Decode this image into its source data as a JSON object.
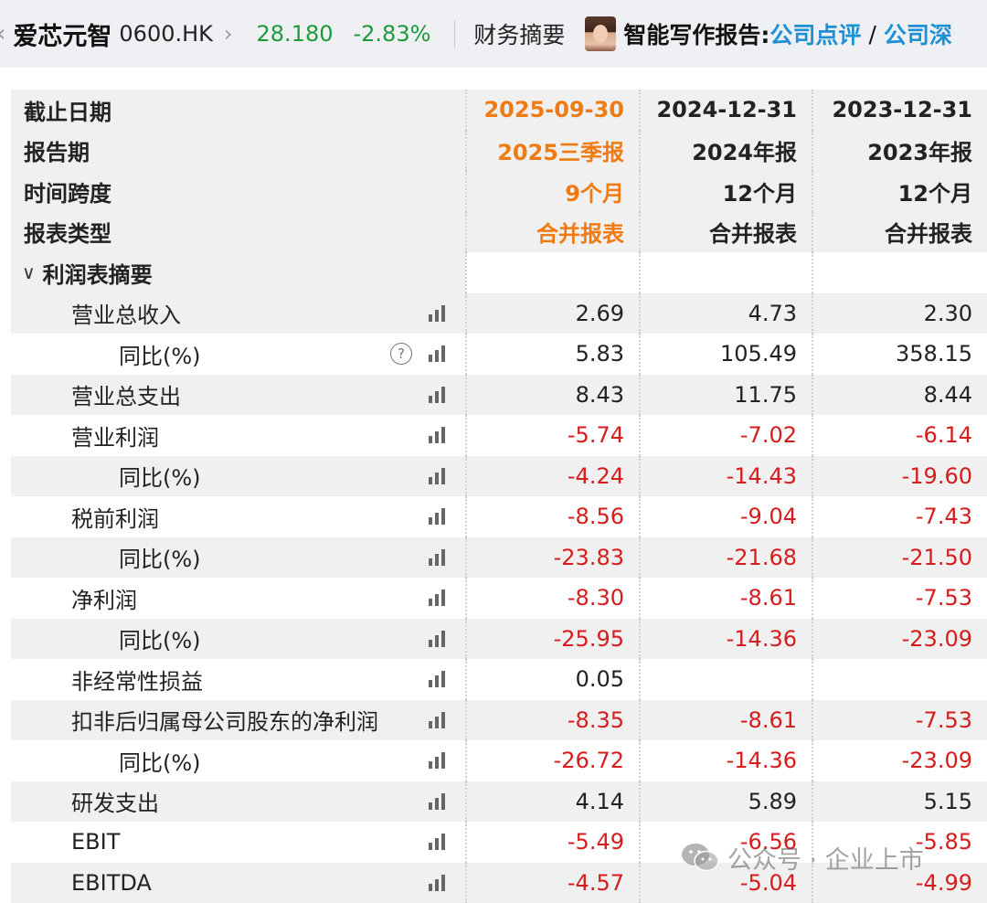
{
  "header": {
    "back_glyph": "‹",
    "stock_name": "爱芯元智",
    "stock_code": "0600.HK",
    "chevron_glyph": "›",
    "price": "28.180",
    "change_pct": "-2.83%",
    "price_color": "#1e9a3b",
    "section_title": "财务摘要",
    "ai_label": "智能写作报告:",
    "link_review": "公司点评",
    "slash": "/",
    "link_deep": "公司深"
  },
  "table": {
    "header_rows": [
      {
        "label": "截止日期",
        "values": [
          "2025-09-30",
          "2024-12-31",
          "2023-12-31"
        ]
      },
      {
        "label": "报告期",
        "values": [
          "2025三季报",
          "2024年报",
          "2023年报"
        ]
      },
      {
        "label": "时间跨度",
        "values": [
          "9个月",
          "12个月",
          "12个月"
        ]
      },
      {
        "label": "报表类型",
        "values": [
          "合并报表",
          "合并报表",
          "合并报表"
        ]
      }
    ],
    "section": {
      "caret": "∨",
      "label": "利润表摘要"
    },
    "rows": [
      {
        "label": "营业总收入",
        "values": [
          "2.69",
          "4.73",
          "2.30"
        ]
      },
      {
        "label": "同比(%)",
        "values": [
          "5.83",
          "105.49",
          "358.15"
        ]
      },
      {
        "label": "营业总支出",
        "values": [
          "8.43",
          "11.75",
          "8.44"
        ]
      },
      {
        "label": "营业利润",
        "values": [
          "-5.74",
          "-7.02",
          "-6.14"
        ]
      },
      {
        "label": "同比(%)",
        "values": [
          "-4.24",
          "-14.43",
          "-19.60"
        ]
      },
      {
        "label": "税前利润",
        "values": [
          "-8.56",
          "-9.04",
          "-7.43"
        ]
      },
      {
        "label": "同比(%)",
        "values": [
          "-23.83",
          "-21.68",
          "-21.50"
        ]
      },
      {
        "label": "净利润",
        "values": [
          "-8.30",
          "-8.61",
          "-7.53"
        ]
      },
      {
        "label": "同比(%)",
        "values": [
          "-25.95",
          "-14.36",
          "-23.09"
        ]
      },
      {
        "label": "非经常性损益",
        "values": [
          "0.05",
          "",
          ""
        ]
      },
      {
        "label": "扣非后归属母公司股东的净利润",
        "values": [
          "-8.35",
          "-8.61",
          "-7.53"
        ]
      },
      {
        "label": "同比(%)",
        "values": [
          "-26.72",
          "-14.36",
          "-23.09"
        ]
      },
      {
        "label": "研发支出",
        "values": [
          "4.14",
          "5.89",
          "5.15"
        ]
      },
      {
        "label": "EBIT",
        "values": [
          "-5.49",
          "-6.56",
          "-5.85"
        ]
      },
      {
        "label": "EBITDA",
        "values": [
          "-4.57",
          "-5.04",
          "-4.99"
        ]
      }
    ],
    "help_glyph": "?",
    "colors": {
      "highlight_period": "#f07b13",
      "negative": "#d61c1c",
      "link": "#1f8fd6"
    }
  },
  "watermark": {
    "text": "公众号 · 企业上市"
  }
}
